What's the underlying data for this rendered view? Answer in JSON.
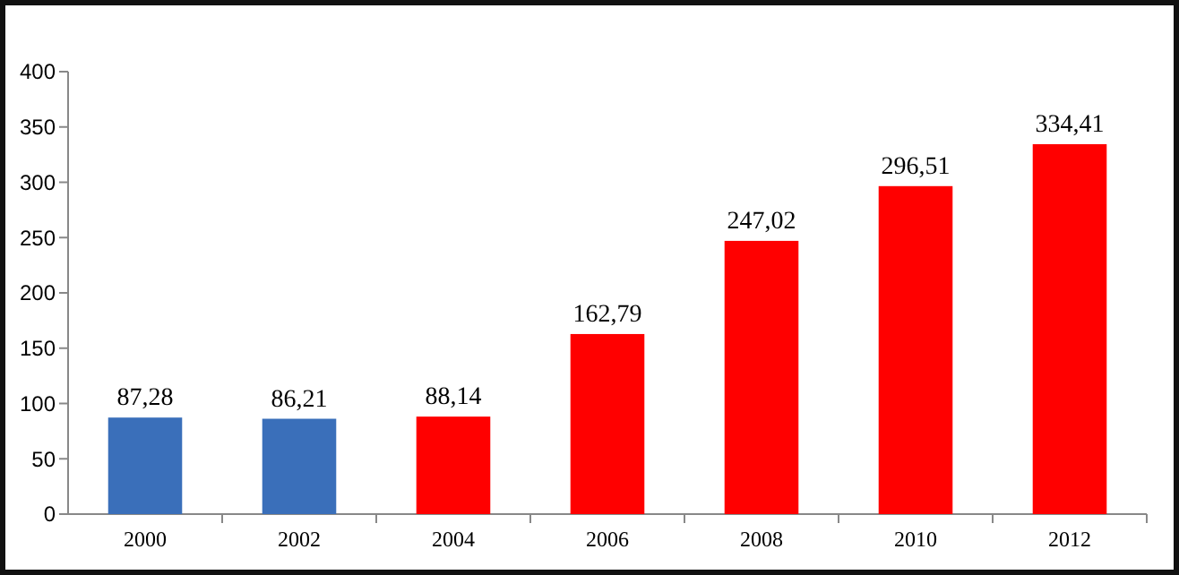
{
  "chart_data": {
    "type": "bar",
    "categories": [
      "2000",
      "2002",
      "2004",
      "2006",
      "2008",
      "2010",
      "2012"
    ],
    "values": [
      87.28,
      86.21,
      88.14,
      162.79,
      247.02,
      296.51,
      334.41
    ],
    "colors": [
      "#3a6fba",
      "#3a6fba",
      "#ff0000",
      "#ff0000",
      "#ff0000",
      "#ff0000",
      "#ff0000"
    ],
    "value_labels": [
      "87,28",
      "86,21",
      "88,14",
      "162,79",
      "247,02",
      "296,51",
      "334,41"
    ],
    "ylim": [
      0,
      400
    ],
    "yticks": [
      0,
      50,
      100,
      150,
      200,
      250,
      300,
      350,
      400
    ]
  }
}
